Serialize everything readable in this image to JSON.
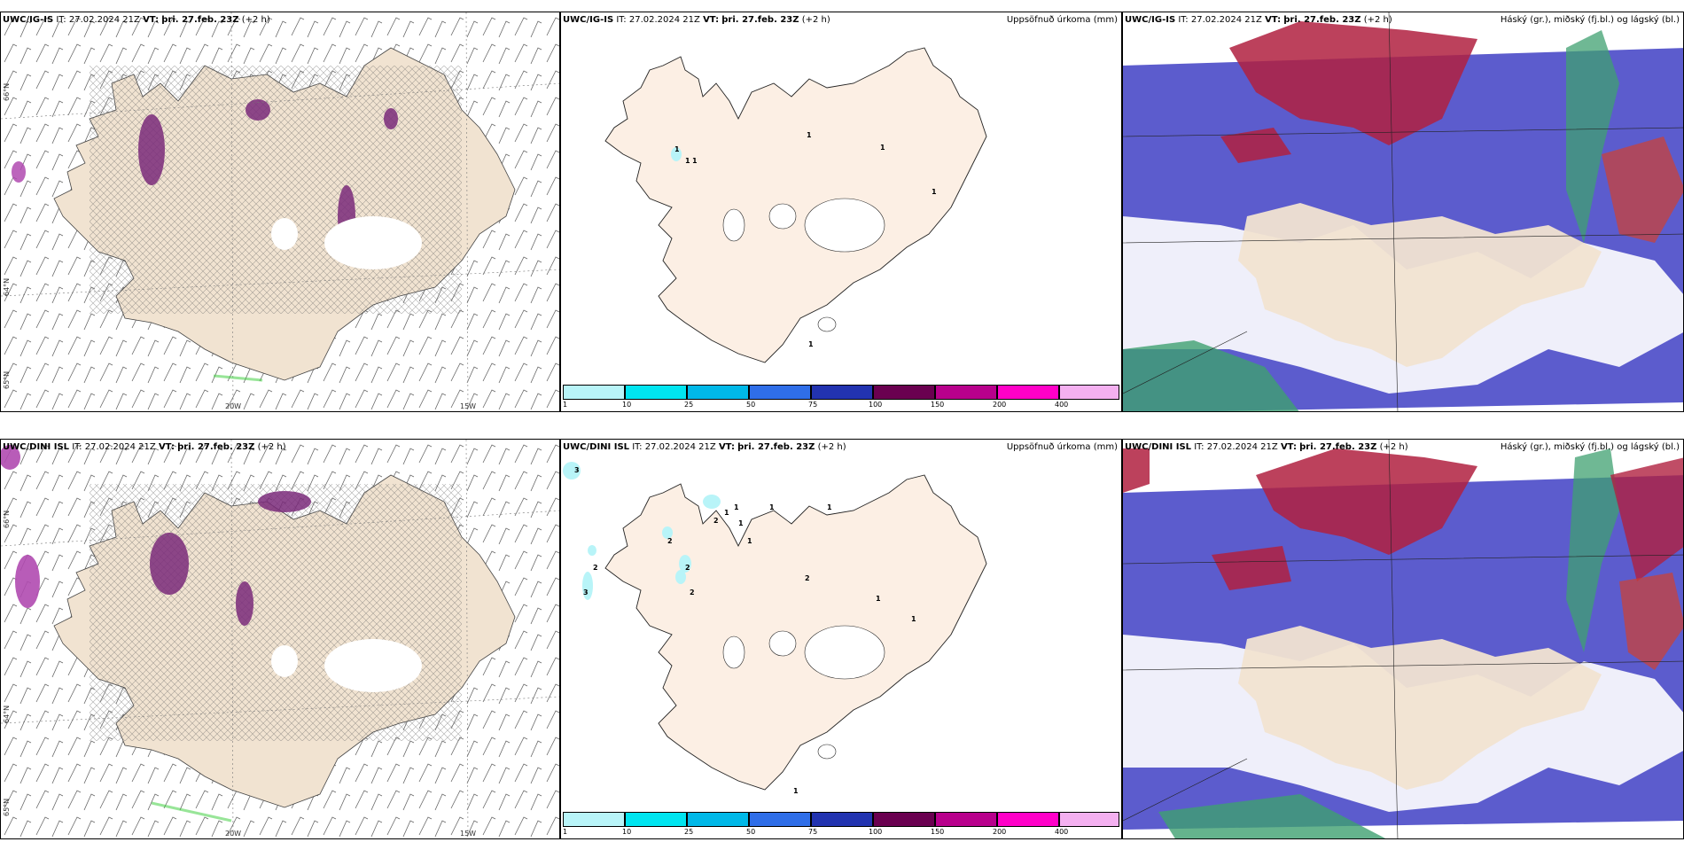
{
  "rows": [
    {
      "model": "UWC/IG-IS",
      "it_label": "IT:",
      "it_value": "27.02.2024 21Z",
      "vt_label": "VT:",
      "vt_value": "þri. 27.feb. 23Z",
      "lead": "(+2 h)"
    },
    {
      "model": "UWC/DINI ISL",
      "it_label": "IT:",
      "it_value": "27.02.2024 21Z",
      "vt_label": "VT:",
      "vt_value": "þri. 27.feb. 23Z",
      "lead": "(+2 h)"
    }
  ],
  "precip_title": "Uppsöfnuð úrkoma (mm)",
  "cloud_title": "Háský (gr.), miðský (fj.bl.) og lágský (bl.)",
  "grid_labels": {
    "lat_66": "66°N",
    "lat_64": "64°N",
    "lat_65": "65°N",
    "lon_20": "20W",
    "lon_15": "15W"
  },
  "colorbar": {
    "ticks": [
      "1",
      "10",
      "25",
      "50",
      "75",
      "100",
      "150",
      "200",
      "400"
    ],
    "colors": [
      "#b8f4f8",
      "#00e5f0",
      "#00b8e8",
      "#2f6ee8",
      "#2233b0",
      "#6a0050",
      "#b8008c",
      "#ff00c8",
      "#f4b0f0"
    ]
  },
  "precip_labels_top": [
    "1",
    "1",
    "1",
    "1",
    "1",
    "1",
    "1"
  ],
  "precip_labels_bottom": [
    "3",
    "2",
    "3",
    "2",
    "2",
    "2",
    "2",
    "1",
    "1",
    "1",
    "1",
    "1",
    "2",
    "1",
    "1",
    "1",
    "1"
  ],
  "colors": {
    "land": "#f1e3d1",
    "land_precip": "#fcefe4",
    "cloud_low": "#4a4ac8",
    "cloud_mid": "#3fa070",
    "cloud_high": "#c02040"
  }
}
